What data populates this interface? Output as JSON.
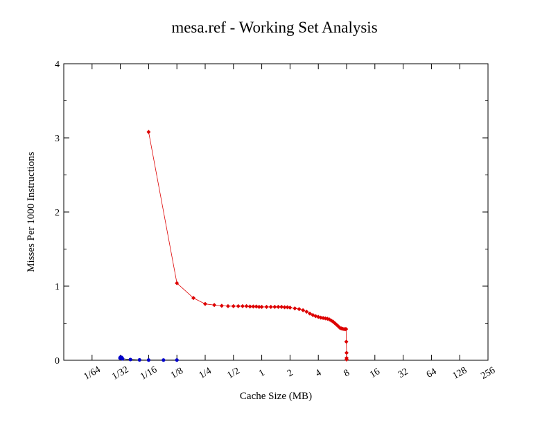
{
  "chart_data": {
    "type": "line",
    "title": "mesa.ref - Working Set Analysis",
    "xlabel": "Cache Size (MB)",
    "ylabel": "Misses Per 1000 Instructions",
    "x_scale": "log2",
    "xlim": [
      0.0078125,
      256
    ],
    "ylim": [
      0,
      4
    ],
    "x_ticks": [
      {
        "value": 0.015625,
        "label": "1/64"
      },
      {
        "value": 0.03125,
        "label": "1/32"
      },
      {
        "value": 0.0625,
        "label": "1/16"
      },
      {
        "value": 0.125,
        "label": "1/8"
      },
      {
        "value": 0.25,
        "label": "1/4"
      },
      {
        "value": 0.5,
        "label": "1/2"
      },
      {
        "value": 1,
        "label": "1"
      },
      {
        "value": 2,
        "label": "2"
      },
      {
        "value": 4,
        "label": "4"
      },
      {
        "value": 8,
        "label": "8"
      },
      {
        "value": 16,
        "label": "16"
      },
      {
        "value": 32,
        "label": "32"
      },
      {
        "value": 64,
        "label": "64"
      },
      {
        "value": 128,
        "label": "128"
      },
      {
        "value": 256,
        "label": "256"
      }
    ],
    "y_ticks": [
      {
        "value": 0,
        "label": "0"
      },
      {
        "value": 1,
        "label": "1"
      },
      {
        "value": 2,
        "label": "2"
      },
      {
        "value": 3,
        "label": "3"
      },
      {
        "value": 4,
        "label": "4"
      }
    ],
    "y_minor_ticks": [
      0.5,
      1.5,
      2.5,
      3.5
    ],
    "grid": false,
    "legend": "none",
    "series": [
      {
        "color": "#0000cc",
        "marker": "dot",
        "x": [
          0.031,
          0.0313,
          0.0315,
          0.0318,
          0.032,
          0.0323,
          0.0325,
          0.033,
          0.04,
          0.05,
          0.0625,
          0.09,
          0.125
        ],
        "y": [
          0.03,
          0.04,
          0.035,
          0.03,
          0.04,
          0.035,
          0.03,
          0.02,
          0.01,
          0.005,
          0.003,
          0.003,
          0.003
        ]
      },
      {
        "color": "#dd0000",
        "marker": "diamond",
        "x": [
          0.0625,
          0.125,
          0.1875,
          0.25,
          0.3125,
          0.375,
          0.4375,
          0.5,
          0.5625,
          0.625,
          0.6875,
          0.75,
          0.8125,
          0.875,
          0.9375,
          1,
          1.125,
          1.25,
          1.375,
          1.5,
          1.625,
          1.75,
          1.875,
          2,
          2.25,
          2.5,
          2.75,
          3,
          3.25,
          3.5,
          3.75,
          4,
          4.25,
          4.5,
          4.75,
          5,
          5.25,
          5.5,
          5.75,
          6,
          6.25,
          6.5,
          6.75,
          7,
          7.25,
          7.5,
          7.75,
          7.9,
          7.95,
          8,
          8,
          8
        ],
        "y": [
          3.08,
          1.04,
          0.84,
          0.76,
          0.745,
          0.735,
          0.73,
          0.73,
          0.73,
          0.73,
          0.73,
          0.725,
          0.725,
          0.725,
          0.72,
          0.72,
          0.72,
          0.72,
          0.72,
          0.72,
          0.72,
          0.715,
          0.715,
          0.71,
          0.7,
          0.69,
          0.675,
          0.655,
          0.63,
          0.61,
          0.595,
          0.585,
          0.575,
          0.57,
          0.565,
          0.56,
          0.55,
          0.535,
          0.52,
          0.5,
          0.48,
          0.46,
          0.44,
          0.43,
          0.425,
          0.42,
          0.42,
          0.42,
          0.25,
          0.1,
          0.03,
          0.01
        ]
      }
    ]
  }
}
